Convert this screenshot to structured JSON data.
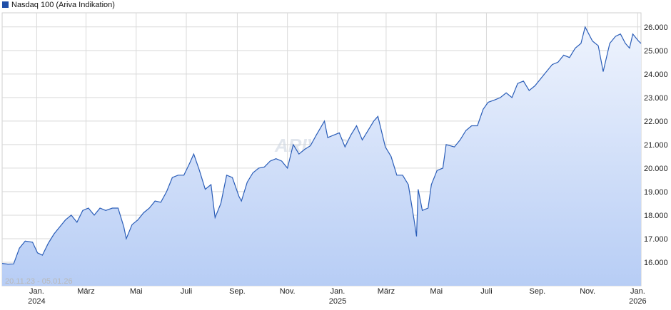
{
  "legend": {
    "label": "Nasdaq 100 (Ariva Indikation)",
    "color": "#1f4fa8"
  },
  "date_range": "20.11.23 - 05.01.26",
  "watermark": "ARIVA.DE",
  "colors": {
    "line": "#2a5db8",
    "fill_top": "#eef3fd",
    "fill_bottom": "#b7cdf5",
    "grid": "#d9d9d9"
  },
  "chart_data": {
    "type": "area",
    "title": "Nasdaq 100 (Ariva Indikation)",
    "xlabel": "",
    "ylabel": "",
    "x_range": [
      "2023-11-20",
      "2026-01-05"
    ],
    "ylim": [
      15000,
      26600
    ],
    "y_ticks": [
      16000,
      17000,
      18000,
      19000,
      20000,
      21000,
      22000,
      23000,
      24000,
      25000,
      26000
    ],
    "y_tick_labels": [
      "16.000",
      "17.000",
      "18.000",
      "19.000",
      "20.000",
      "21.000",
      "22.000",
      "23.000",
      "24.000",
      "25.000",
      "26.000"
    ],
    "x_ticks": [
      {
        "date": "2024-01-01",
        "label": "Jan.",
        "sublabel": "2024"
      },
      {
        "date": "2024-03-01",
        "label": "März",
        "sublabel": ""
      },
      {
        "date": "2024-05-01",
        "label": "Mai",
        "sublabel": ""
      },
      {
        "date": "2024-07-01",
        "label": "Juli",
        "sublabel": ""
      },
      {
        "date": "2024-09-01",
        "label": "Sep.",
        "sublabel": ""
      },
      {
        "date": "2024-11-01",
        "label": "Nov.",
        "sublabel": ""
      },
      {
        "date": "2025-01-01",
        "label": "Jan.",
        "sublabel": "2025"
      },
      {
        "date": "2025-03-01",
        "label": "März",
        "sublabel": ""
      },
      {
        "date": "2025-05-01",
        "label": "Mai",
        "sublabel": ""
      },
      {
        "date": "2025-07-01",
        "label": "Juli",
        "sublabel": ""
      },
      {
        "date": "2025-09-01",
        "label": "Sep.",
        "sublabel": ""
      },
      {
        "date": "2025-11-01",
        "label": "Nov.",
        "sublabel": ""
      },
      {
        "date": "2026-01-01",
        "label": "Jan.",
        "sublabel": "2026"
      }
    ],
    "grid": true,
    "legend_position": "top-left",
    "series": [
      {
        "name": "Nasdaq 100 (Ariva Indikation)",
        "points": [
          [
            "2023-11-20",
            15950
          ],
          [
            "2023-11-27",
            15920
          ],
          [
            "2023-12-04",
            15930
          ],
          [
            "2023-12-11",
            16600
          ],
          [
            "2023-12-18",
            16900
          ],
          [
            "2023-12-27",
            16850
          ],
          [
            "2024-01-02",
            16400
          ],
          [
            "2024-01-08",
            16300
          ],
          [
            "2024-01-15",
            16800
          ],
          [
            "2024-01-22",
            17200
          ],
          [
            "2024-01-29",
            17500
          ],
          [
            "2024-02-05",
            17800
          ],
          [
            "2024-02-12",
            18000
          ],
          [
            "2024-02-19",
            17700
          ],
          [
            "2024-02-26",
            18200
          ],
          [
            "2024-03-04",
            18300
          ],
          [
            "2024-03-11",
            18000
          ],
          [
            "2024-03-18",
            18300
          ],
          [
            "2024-03-25",
            18200
          ],
          [
            "2024-04-02",
            18300
          ],
          [
            "2024-04-09",
            18300
          ],
          [
            "2024-04-16",
            17500
          ],
          [
            "2024-04-19",
            17000
          ],
          [
            "2024-04-26",
            17600
          ],
          [
            "2024-05-03",
            17800
          ],
          [
            "2024-05-10",
            18100
          ],
          [
            "2024-05-17",
            18300
          ],
          [
            "2024-05-24",
            18600
          ],
          [
            "2024-05-31",
            18550
          ],
          [
            "2024-06-07",
            19000
          ],
          [
            "2024-06-14",
            19600
          ],
          [
            "2024-06-21",
            19700
          ],
          [
            "2024-06-28",
            19700
          ],
          [
            "2024-07-05",
            20200
          ],
          [
            "2024-07-10",
            20600
          ],
          [
            "2024-07-17",
            19900
          ],
          [
            "2024-07-24",
            19100
          ],
          [
            "2024-07-31",
            19300
          ],
          [
            "2024-08-05",
            17900
          ],
          [
            "2024-08-12",
            18500
          ],
          [
            "2024-08-19",
            19700
          ],
          [
            "2024-08-26",
            19600
          ],
          [
            "2024-09-03",
            18800
          ],
          [
            "2024-09-06",
            18600
          ],
          [
            "2024-09-13",
            19400
          ],
          [
            "2024-09-20",
            19800
          ],
          [
            "2024-09-27",
            20000
          ],
          [
            "2024-10-04",
            20050
          ],
          [
            "2024-10-11",
            20300
          ],
          [
            "2024-10-18",
            20400
          ],
          [
            "2024-10-25",
            20300
          ],
          [
            "2024-11-01",
            20000
          ],
          [
            "2024-11-08",
            21000
          ],
          [
            "2024-11-15",
            20600
          ],
          [
            "2024-11-22",
            20800
          ],
          [
            "2024-11-29",
            20950
          ],
          [
            "2024-12-06",
            21400
          ],
          [
            "2024-12-16",
            22000
          ],
          [
            "2024-12-20",
            21300
          ],
          [
            "2024-12-27",
            21400
          ],
          [
            "2025-01-03",
            21500
          ],
          [
            "2025-01-10",
            20900
          ],
          [
            "2025-01-17",
            21400
          ],
          [
            "2025-01-24",
            21800
          ],
          [
            "2025-01-31",
            21200
          ],
          [
            "2025-02-07",
            21600
          ],
          [
            "2025-02-14",
            22000
          ],
          [
            "2025-02-19",
            22200
          ],
          [
            "2025-02-28",
            20900
          ],
          [
            "2025-03-07",
            20500
          ],
          [
            "2025-03-14",
            19700
          ],
          [
            "2025-03-21",
            19700
          ],
          [
            "2025-03-28",
            19300
          ],
          [
            "2025-04-04",
            17800
          ],
          [
            "2025-04-07",
            17100
          ],
          [
            "2025-04-09",
            19100
          ],
          [
            "2025-04-14",
            18200
          ],
          [
            "2025-04-21",
            18300
          ],
          [
            "2025-04-25",
            19300
          ],
          [
            "2025-05-02",
            19900
          ],
          [
            "2025-05-09",
            20000
          ],
          [
            "2025-05-13",
            21000
          ],
          [
            "2025-05-23",
            20900
          ],
          [
            "2025-05-30",
            21200
          ],
          [
            "2025-06-06",
            21600
          ],
          [
            "2025-06-13",
            21800
          ],
          [
            "2025-06-20",
            21800
          ],
          [
            "2025-06-27",
            22500
          ],
          [
            "2025-07-03",
            22800
          ],
          [
            "2025-07-11",
            22900
          ],
          [
            "2025-07-18",
            23000
          ],
          [
            "2025-07-25",
            23200
          ],
          [
            "2025-08-01",
            23000
          ],
          [
            "2025-08-08",
            23600
          ],
          [
            "2025-08-15",
            23700
          ],
          [
            "2025-08-22",
            23300
          ],
          [
            "2025-08-29",
            23500
          ],
          [
            "2025-09-05",
            23800
          ],
          [
            "2025-09-12",
            24100
          ],
          [
            "2025-09-19",
            24400
          ],
          [
            "2025-09-26",
            24500
          ],
          [
            "2025-10-03",
            24800
          ],
          [
            "2025-10-10",
            24700
          ],
          [
            "2025-10-17",
            25100
          ],
          [
            "2025-10-24",
            25300
          ],
          [
            "2025-10-29",
            26000
          ],
          [
            "2025-11-07",
            25400
          ],
          [
            "2025-11-14",
            25200
          ],
          [
            "2025-11-20",
            24100
          ],
          [
            "2025-11-28",
            25300
          ],
          [
            "2025-12-05",
            25600
          ],
          [
            "2025-12-11",
            25700
          ],
          [
            "2025-12-17",
            25300
          ],
          [
            "2025-12-22",
            25100
          ],
          [
            "2025-12-26",
            25700
          ],
          [
            "2026-01-02",
            25400
          ],
          [
            "2026-01-05",
            25300
          ]
        ]
      }
    ]
  }
}
